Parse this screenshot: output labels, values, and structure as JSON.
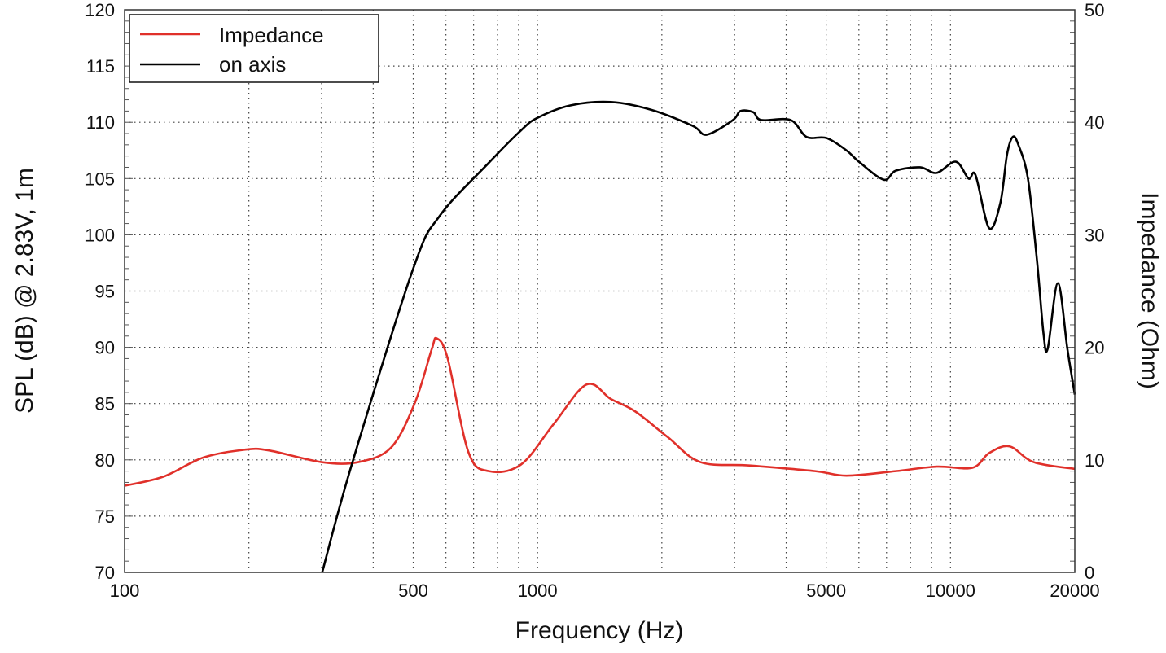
{
  "chart_data": {
    "type": "line",
    "xlabel": "Frequency (Hz)",
    "ylabel": "SPL (dB) @ 2.83V, 1m",
    "y2label": "Impedance (Ohm)",
    "x_scale": "log",
    "xlim": [
      100,
      20000
    ],
    "ylim": [
      70,
      120
    ],
    "y2lim": [
      0,
      50
    ],
    "x_ticks": [
      100,
      500,
      1000,
      5000,
      10000,
      20000
    ],
    "y_ticks": [
      70,
      75,
      80,
      85,
      90,
      95,
      100,
      105,
      110,
      115,
      120
    ],
    "y2_ticks": [
      0,
      10,
      20,
      30,
      40,
      50
    ],
    "grid": true,
    "legend_position": "top-left",
    "series": [
      {
        "name": "Impedance",
        "axis": "right",
        "color": "#e0302a",
        "x": [
          100,
          124,
          155,
          195,
          223,
          300,
          368,
          442,
          505,
          554,
          570,
          606,
          680,
          762,
          913,
          1095,
          1315,
          1506,
          1725,
          2070,
          2480,
          3260,
          4700,
          5600,
          7370,
          9250,
          11300,
          12400,
          13900,
          15900,
          20000
        ],
        "values": [
          7.7,
          8.5,
          10.2,
          10.9,
          10.85,
          9.8,
          9.8,
          11.1,
          15.1,
          19.8,
          20.8,
          19.0,
          10.7,
          9.0,
          9.6,
          13.2,
          16.7,
          15.4,
          14.3,
          12.0,
          9.8,
          9.5,
          9.0,
          8.6,
          9.0,
          9.4,
          9.3,
          10.6,
          11.2,
          9.8,
          9.2
        ]
      },
      {
        "name": "on axis",
        "axis": "left",
        "color": "#000000",
        "x": [
          301,
          355,
          500,
          580,
          762,
          913,
          1000,
          1200,
          1506,
          1889,
          2370,
          2570,
          2973,
          3100,
          3330,
          3480,
          4100,
          4480,
          5010,
          5600,
          6000,
          6890,
          7370,
          8440,
          9250,
          10300,
          11060,
          11500,
          12400,
          13200,
          13700,
          14150,
          14600,
          15400,
          16200,
          16800,
          17200,
          18200,
          19200,
          20000
        ],
        "values": [
          70,
          79.6,
          97,
          101.7,
          106.4,
          109.3,
          110.4,
          111.5,
          111.8,
          111.1,
          109.7,
          108.9,
          110.2,
          111,
          110.9,
          110.2,
          110.2,
          108.7,
          108.6,
          107.5,
          106.5,
          104.9,
          105.7,
          106,
          105.5,
          106.5,
          105,
          105.3,
          100.6,
          102.8,
          107.1,
          108.7,
          108,
          105,
          97.7,
          91.2,
          89.9,
          95.7,
          89.8,
          85.8
        ]
      }
    ]
  }
}
